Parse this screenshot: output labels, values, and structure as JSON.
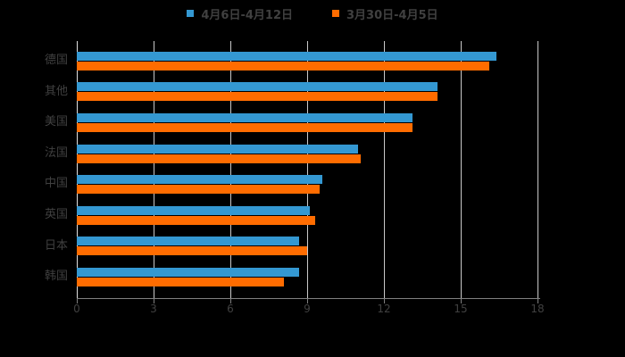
{
  "legend": {
    "position": "top",
    "items": [
      {
        "label": "4月6日-4月12日",
        "color": "#3498d2"
      },
      {
        "label": "3月30日-4月5日",
        "color": "#ff6c00"
      }
    ]
  },
  "colors": {
    "background": "#000000",
    "text": "#404040",
    "gridline": "#c9c9c9",
    "axis_line": "#7f7f7f",
    "series1_blue": "#3498d2",
    "series2_orange": "#ff6c00"
  },
  "chart_data": {
    "type": "bar",
    "orientation": "horizontal",
    "title": "",
    "categories": [
      "德国",
      "其他",
      "美国",
      "法国",
      "中国",
      "英国",
      "日本",
      "韩国"
    ],
    "series": [
      {
        "name": "4月6日-4月12日",
        "color": "#3498d2",
        "values": [
          16.4,
          14.1,
          13.1,
          11.0,
          9.6,
          9.1,
          8.7,
          8.7
        ]
      },
      {
        "name": "3月30日-4月5日",
        "color": "#ff6c00",
        "values": [
          16.1,
          14.1,
          13.1,
          11.1,
          9.5,
          9.3,
          9.0,
          8.1
        ]
      }
    ],
    "x_ticks": [
      "0",
      "3",
      "6",
      "9",
      "12",
      "15",
      "18"
    ],
    "xlim": [
      0,
      18
    ],
    "grid": true,
    "legend_position": "top"
  }
}
